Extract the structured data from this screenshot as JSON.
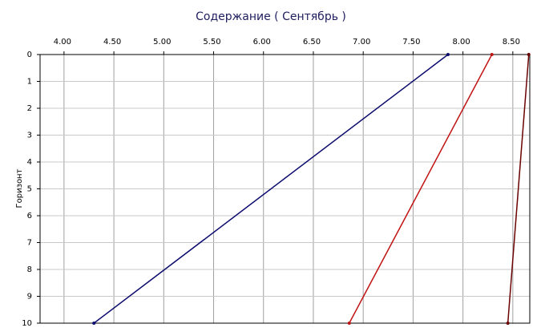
{
  "chart_data": {
    "type": "line",
    "title": "Содержание    ( Сентябрь )",
    "y_label": "Горизонт",
    "depth": [
      0,
      10
    ],
    "series": [
      {
        "color": "#0c0c6e",
        "values": [
          7.85,
          4.3
        ]
      },
      {
        "color": "#c01414",
        "values": [
          8.29,
          6.86
        ]
      },
      {
        "color": "#6a0000",
        "values": [
          8.66,
          8.45
        ]
      }
    ],
    "xlim": [
      3.76,
      8.67
    ],
    "xticks": [
      {
        "value": 4,
        "label": "4.00"
      },
      {
        "value": 4.5,
        "label": "4.50"
      },
      {
        "value": 5,
        "label": "5.00"
      },
      {
        "value": 5.5,
        "label": "5.50"
      },
      {
        "value": 6,
        "label": "6.00"
      },
      {
        "value": 6.5,
        "label": "6.50"
      },
      {
        "value": 7,
        "label": "7.00"
      },
      {
        "value": 7.5,
        "label": "7.50"
      },
      {
        "value": 8,
        "label": "8.00"
      },
      {
        "value": 8.5,
        "label": "8.50"
      }
    ],
    "ylim": [
      0,
      10
    ],
    "yticks": [
      0,
      1,
      2,
      3,
      4,
      5,
      6,
      7,
      8,
      9,
      10
    ],
    "y_inverted": true,
    "grid": true
  }
}
